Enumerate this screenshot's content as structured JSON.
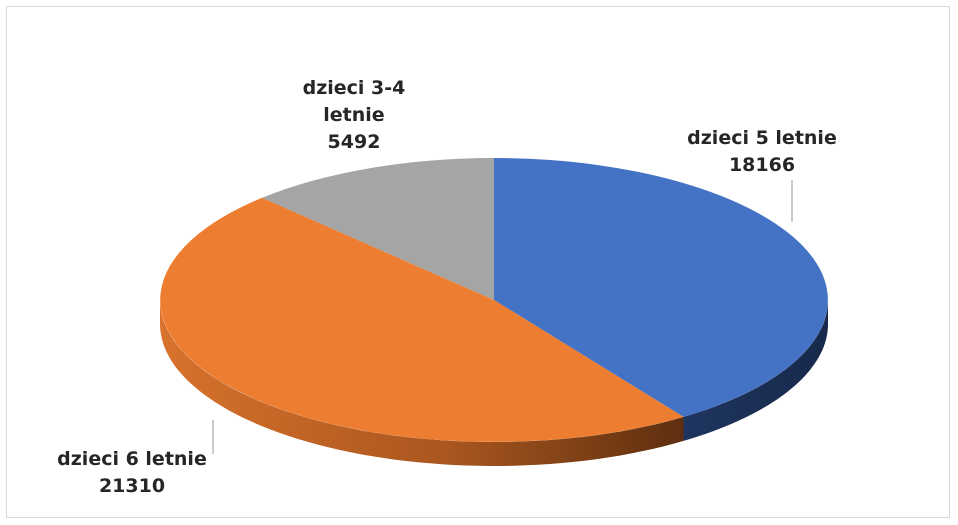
{
  "chart_data": {
    "type": "pie",
    "style": "3d",
    "title": "",
    "slices": [
      {
        "label_lines": [
          "dzieci 5 letnie",
          "18166"
        ],
        "value": 18166,
        "color": "#4472c4"
      },
      {
        "label_lines": [
          "dzieci 6 letnie",
          "21310"
        ],
        "value": 21310,
        "color": "#ed7d31"
      },
      {
        "label_lines": [
          "dzieci 3-4",
          "letnie",
          "5492"
        ],
        "value": 5492,
        "color": "#a5a5a5"
      }
    ],
    "legend": "none",
    "data_labels": "outside-with-leader-lines"
  }
}
